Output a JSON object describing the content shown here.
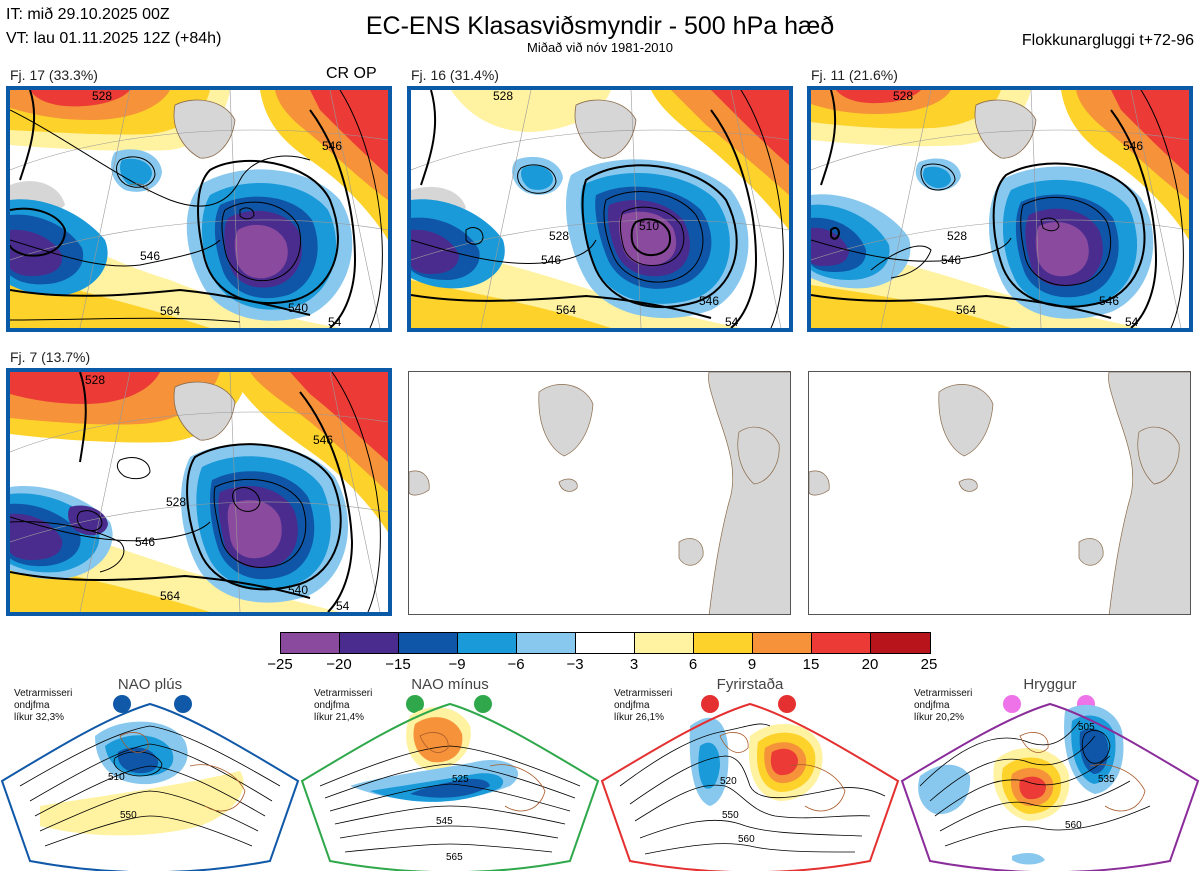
{
  "header": {
    "it_line": "IT: mið 29.10.2025 00Z",
    "vt_line": "VT: lau 01.11.2025 12Z  (+84h)",
    "title": "EC-ENS Klasasviðsmyndir - 500 hPa hæð",
    "subtitle": "Miðað við nóv 1981-2010",
    "window": "Flokkunargluggi t+72-96"
  },
  "panels": [
    {
      "label": "Fj. 17 (33.3%)",
      "marker": "CR OP",
      "contours": [
        "528",
        "546",
        "564",
        "546",
        "540",
        "54"
      ]
    },
    {
      "label": "Fj. 16 (31.4%)",
      "marker": "",
      "contours": [
        "528",
        "510",
        "528",
        "546",
        "564",
        "546",
        "54"
      ]
    },
    {
      "label": "Fj. 11 (21.6%)",
      "marker": "",
      "contours": [
        "528",
        "546",
        "528",
        "546",
        "564",
        "546",
        "54"
      ]
    },
    {
      "label": "Fj. 7 (13.7%)",
      "marker": "",
      "contours": [
        "528",
        "546",
        "528",
        "546",
        "564",
        "540",
        "54"
      ]
    }
  ],
  "colorbar": {
    "ticks": [
      "−25",
      "−20",
      "−15",
      "−9",
      "−6",
      "−3",
      "3",
      "6",
      "9",
      "15",
      "20",
      "25"
    ],
    "colors": [
      "#8a4a9e",
      "#4a2c8f",
      "#0f56a8",
      "#1a9ad8",
      "#88c8ee",
      "#ffffff",
      "#fff2a0",
      "#fdd22a",
      "#f5923a",
      "#ec3a36",
      "#b8141c"
    ]
  },
  "regimes": [
    {
      "name": "NAO plús",
      "info": [
        "Vetrarmisseri",
        "ondjfma",
        "líkur 32,3%"
      ],
      "contours": [
        "510",
        "550"
      ],
      "color": "#1058a8",
      "dot": "#1058a8"
    },
    {
      "name": "NAO mínus",
      "info": [
        "Vetrarmisseri",
        "ondjfma",
        "líkur 21,4%"
      ],
      "contours": [
        "525",
        "545",
        "565"
      ],
      "color": "#2ea84a",
      "dot": "#2ea84a"
    },
    {
      "name": "Fyrirstaða",
      "info": [
        "Vetrarmisseri",
        "ondjfma",
        "líkur 26,1%"
      ],
      "contours": [
        "520",
        "550",
        "560"
      ],
      "color": "#e43030",
      "dot": "#e43030"
    },
    {
      "name": "Hryggur",
      "info": [
        "Vetrarmisseri",
        "ondjfma",
        "líkur 20,2%"
      ],
      "contours": [
        "505",
        "535",
        "560"
      ],
      "color": "#8a2c9a",
      "dot": "#ee72e8"
    }
  ]
}
